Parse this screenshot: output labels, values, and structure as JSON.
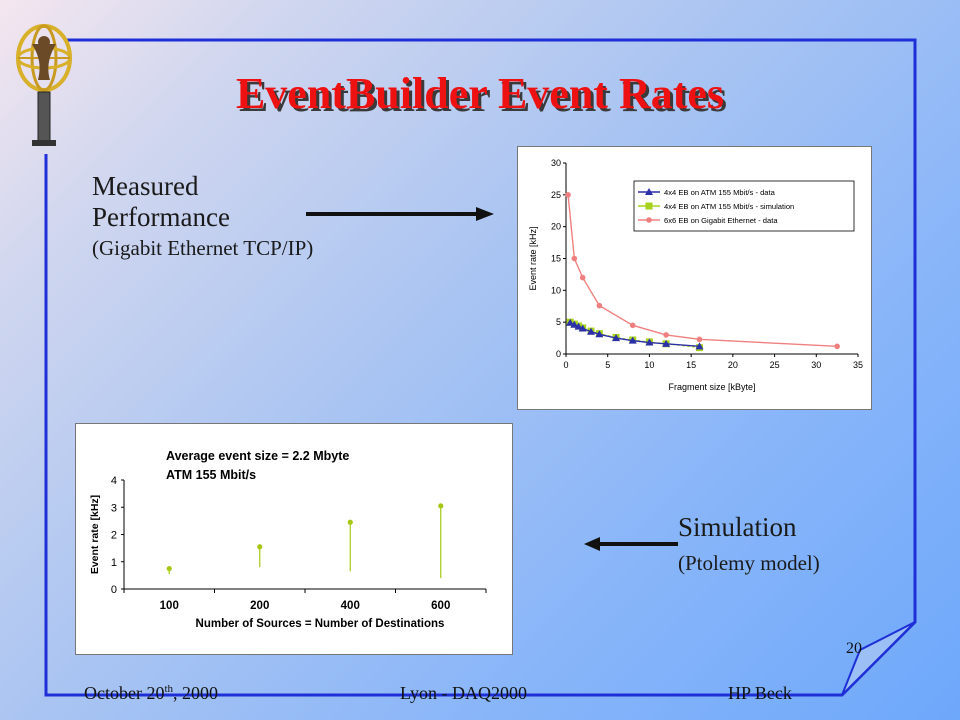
{
  "slide": {
    "title": "EventBuilder Event Rates",
    "number": "20",
    "colors": {
      "title": "#ee1111",
      "frame": "#1f2fd8",
      "background_start": "#f4e6ef",
      "background_end": "#6ea8fb"
    },
    "logo_icon": "atlas-logo-icon"
  },
  "labels": {
    "measured_line1": "Measured",
    "measured_line2": "Performance",
    "measured_sub": "(Gigabit Ethernet TCP/IP)",
    "simulation_line1": "Simulation",
    "simulation_sub": "(Ptolemy model)"
  },
  "footer": {
    "date_prefix": "October 20",
    "date_sup": "th",
    "date_suffix": ", 2000",
    "venue": "Lyon - DAQ2000",
    "author": "HP Beck"
  },
  "chart_data": [
    {
      "type": "line",
      "title": "",
      "xlabel": "Fragment size [kByte]",
      "ylabel": "Event rate [kHz]",
      "xlim": [
        0,
        35
      ],
      "ylim": [
        0,
        30
      ],
      "xticks": [
        0,
        5,
        10,
        15,
        20,
        25,
        30,
        35
      ],
      "yticks": [
        0,
        5,
        10,
        15,
        20,
        25,
        30
      ],
      "legend": "top-right",
      "series": [
        {
          "name": "4x4 EB on ATM 155 Mbit/s - data",
          "color": "#2b2fa8",
          "marker": "triangle",
          "x": [
            0.5,
            1,
            1.5,
            2,
            3,
            4,
            6,
            8,
            10,
            12,
            16
          ],
          "y": [
            4.9,
            4.6,
            4.3,
            4.0,
            3.5,
            3.1,
            2.5,
            2.1,
            1.8,
            1.6,
            1.2
          ]
        },
        {
          "name": "4x4 EB on ATM 155 Mbit/s - simulation",
          "color": "#a6d21e",
          "marker": "square",
          "x": [
            0.5,
            1,
            1.5,
            2,
            3,
            4,
            6,
            8,
            10,
            12,
            16
          ],
          "y": [
            5.0,
            4.7,
            4.4,
            4.1,
            3.6,
            3.2,
            2.6,
            2.2,
            1.9,
            1.6,
            1.0
          ]
        },
        {
          "name": "6x6 EB on Gigabit Ethernet - data",
          "color": "#f08080",
          "marker": "circle",
          "x": [
            0.25,
            1,
            2,
            4,
            8,
            12,
            16,
            32.5
          ],
          "y": [
            25,
            15,
            12,
            7.6,
            4.5,
            3.0,
            2.3,
            1.2
          ]
        }
      ]
    },
    {
      "type": "scatter",
      "title": "Average event size = 2.2 Mbyte",
      "subtitle": "ATM 155 Mbit/s",
      "xlabel": "Number of Sources = Number of Destinations",
      "ylabel": "Event rate [kHz]",
      "ylim": [
        0,
        4
      ],
      "yticks": [
        0,
        1,
        2,
        3,
        4
      ],
      "categories": [
        "100",
        "200",
        "400",
        "600"
      ],
      "color": "#a6c814",
      "values": [
        0.75,
        1.55,
        2.45,
        3.05
      ],
      "mins": [
        0.55,
        0.8,
        0.65,
        0.4
      ]
    }
  ]
}
